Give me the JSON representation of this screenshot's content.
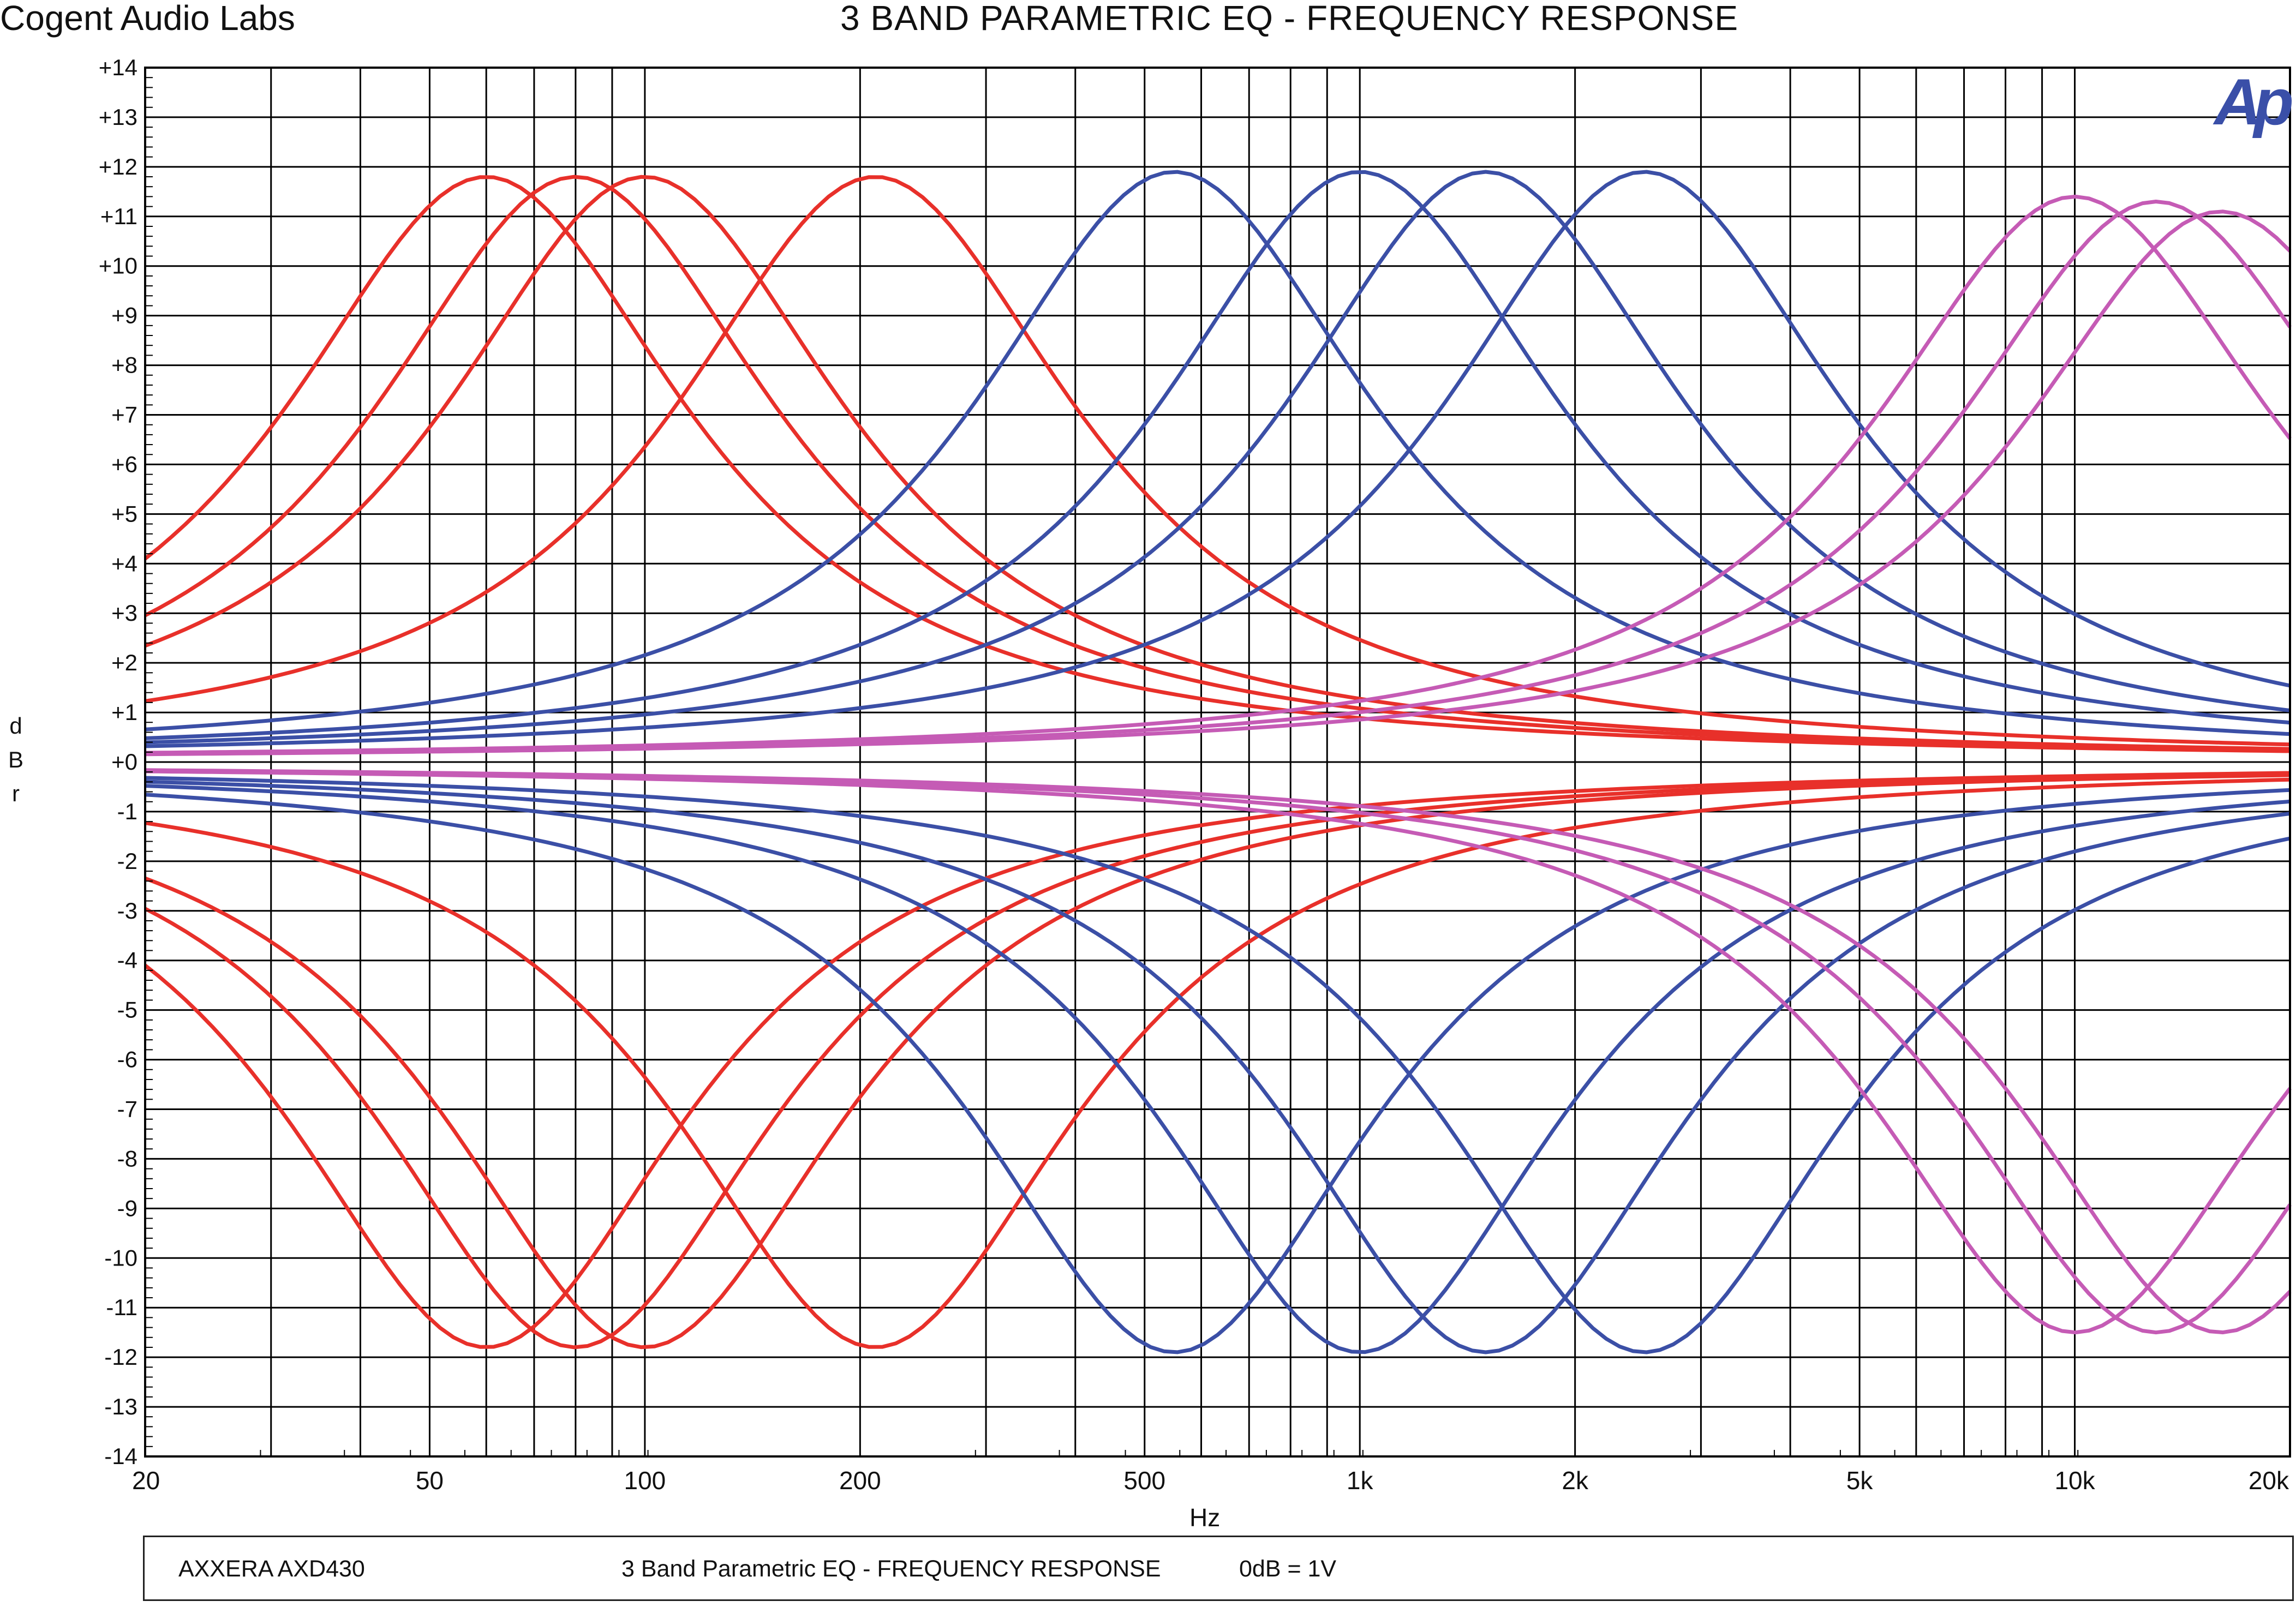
{
  "header": {
    "company": "Cogent Audio Labs",
    "title": "3 BAND PARAMETRIC EQ  -  FREQUENCY RESPONSE"
  },
  "logo_text": "Ap",
  "footer": {
    "device": "AXXERA AXD430",
    "description": "3 Band Parametric EQ  -  FREQUENCY RESPONSE",
    "reference": "0dB = 1V"
  },
  "chart_data": {
    "type": "line",
    "title": "3 BAND PARAMETRIC EQ  -  FREQUENCY RESPONSE",
    "xlabel": "Hz",
    "ylabel": "dBr",
    "xscale": "log",
    "xlim": [
      20,
      20000
    ],
    "ylim": [
      -14,
      14
    ],
    "grid": true,
    "x_tick_labels": [
      "20",
      "50",
      "100",
      "200",
      "500",
      "1k",
      "2k",
      "5k",
      "10k",
      "20k"
    ],
    "y_tick_labels": [
      "+14",
      "+13",
      "+12",
      "+11",
      "+10",
      "+9",
      "+8",
      "+7",
      "+6",
      "+5",
      "+4",
      "+3",
      "+2",
      "+1",
      "+0",
      "-1",
      "-2",
      "-3",
      "-4",
      "-5",
      "-6",
      "-7",
      "-8",
      "-9",
      "-10",
      "-11",
      "-12",
      "-13",
      "-14"
    ],
    "colors": {
      "low_band": "#e8302a",
      "mid_band": "#3b4fa6",
      "high_band": "#c55bb5",
      "grid": "#000000"
    },
    "series": [
      {
        "band": "low",
        "color": "#e8302a",
        "curve": "peak",
        "center_hz": 60,
        "gain_db": 11.8,
        "q": 0.75
      },
      {
        "band": "low",
        "color": "#e8302a",
        "curve": "peak",
        "center_hz": 80,
        "gain_db": 11.8,
        "q": 0.75
      },
      {
        "band": "low",
        "color": "#e8302a",
        "curve": "peak",
        "center_hz": 100,
        "gain_db": 11.8,
        "q": 0.75
      },
      {
        "band": "low",
        "color": "#e8302a",
        "curve": "peak",
        "center_hz": 210,
        "gain_db": 11.8,
        "q": 0.75
      },
      {
        "band": "low",
        "color": "#e8302a",
        "curve": "peak",
        "center_hz": 60,
        "gain_db": -11.8,
        "q": 0.75
      },
      {
        "band": "low",
        "color": "#e8302a",
        "curve": "peak",
        "center_hz": 80,
        "gain_db": -11.8,
        "q": 0.75
      },
      {
        "band": "low",
        "color": "#e8302a",
        "curve": "peak",
        "center_hz": 100,
        "gain_db": -11.8,
        "q": 0.75
      },
      {
        "band": "low",
        "color": "#e8302a",
        "curve": "peak",
        "center_hz": 210,
        "gain_db": -11.8,
        "q": 0.75
      },
      {
        "band": "mid",
        "color": "#3b4fa6",
        "curve": "peak",
        "center_hz": 550,
        "gain_db": 11.9,
        "q": 0.75
      },
      {
        "band": "mid",
        "color": "#3b4fa6",
        "curve": "peak",
        "center_hz": 1000,
        "gain_db": 11.9,
        "q": 0.75
      },
      {
        "band": "mid",
        "color": "#3b4fa6",
        "curve": "peak",
        "center_hz": 1500,
        "gain_db": 11.9,
        "q": 0.75
      },
      {
        "band": "mid",
        "color": "#3b4fa6",
        "curve": "peak",
        "center_hz": 2500,
        "gain_db": 11.9,
        "q": 0.75
      },
      {
        "band": "mid",
        "color": "#3b4fa6",
        "curve": "peak",
        "center_hz": 550,
        "gain_db": -11.9,
        "q": 0.75
      },
      {
        "band": "mid",
        "color": "#3b4fa6",
        "curve": "peak",
        "center_hz": 1000,
        "gain_db": -11.9,
        "q": 0.75
      },
      {
        "band": "mid",
        "color": "#3b4fa6",
        "curve": "peak",
        "center_hz": 1500,
        "gain_db": -11.9,
        "q": 0.75
      },
      {
        "band": "mid",
        "color": "#3b4fa6",
        "curve": "peak",
        "center_hz": 2500,
        "gain_db": -11.9,
        "q": 0.75
      },
      {
        "band": "high",
        "color": "#c55bb5",
        "curve": "peak",
        "center_hz": 10000,
        "gain_db": 11.4,
        "q": 0.75
      },
      {
        "band": "high",
        "color": "#c55bb5",
        "curve": "peak",
        "center_hz": 13000,
        "gain_db": 11.3,
        "q": 0.75
      },
      {
        "band": "high",
        "color": "#c55bb5",
        "curve": "peak",
        "center_hz": 16000,
        "gain_db": 11.1,
        "q": 0.75
      },
      {
        "band": "high",
        "color": "#c55bb5",
        "curve": "peak",
        "center_hz": 10000,
        "gain_db": -11.5,
        "q": 0.75
      },
      {
        "band": "high",
        "color": "#c55bb5",
        "curve": "peak",
        "center_hz": 13000,
        "gain_db": -11.5,
        "q": 0.75
      },
      {
        "band": "high",
        "color": "#c55bb5",
        "curve": "peak",
        "center_hz": 16000,
        "gain_db": -11.5,
        "q": 0.75
      }
    ]
  }
}
